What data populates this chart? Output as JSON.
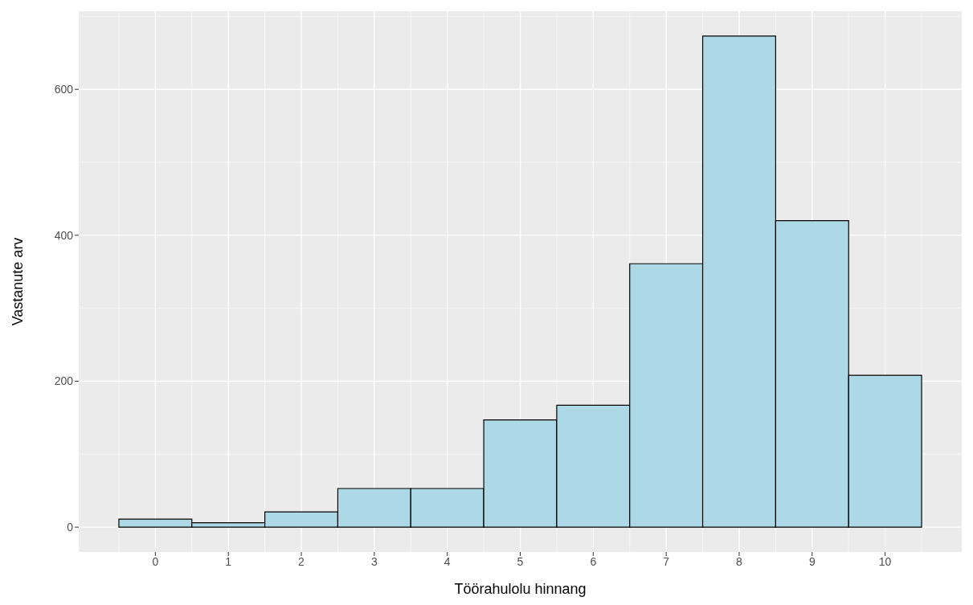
{
  "chart_data": {
    "type": "histogram",
    "xlabel": "Töörahulolu hinnang",
    "ylabel": "Vastanute arv",
    "bins": [
      -0.5,
      0.5,
      1.5,
      2.5,
      3.5,
      4.5,
      5.5,
      6.5,
      7.5,
      8.5,
      9.5,
      10.5
    ],
    "values": [
      11,
      6,
      21,
      53,
      53,
      147,
      167,
      361,
      673,
      420,
      208
    ],
    "color": "#add8e6",
    "xlim": [
      -1.05,
      11.05
    ],
    "xticks": [
      0,
      1,
      2,
      3,
      4,
      5,
      6,
      7,
      8,
      9,
      10
    ],
    "ylim": [
      -34,
      707
    ],
    "yticks": [
      0,
      200,
      400,
      600
    ],
    "grid": true
  }
}
